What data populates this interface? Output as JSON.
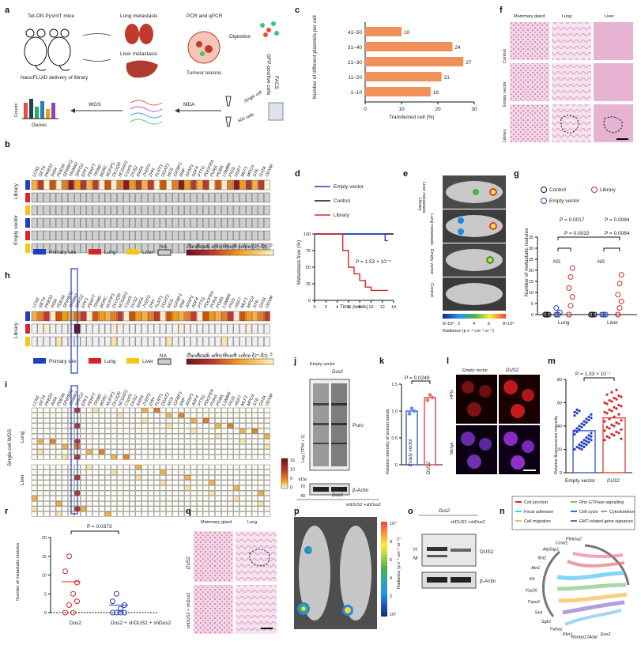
{
  "figure": {
    "panels": {
      "a": "a",
      "b": "b",
      "c": "c",
      "d": "d",
      "e": "e",
      "f": "f",
      "g": "g",
      "h": "h",
      "i": "i",
      "j": "j",
      "k": "k",
      "l": "l",
      "m": "m",
      "n": "n",
      "o": "o",
      "p": "p",
      "q": "q",
      "r": "r"
    }
  },
  "panel_a": {
    "mice": "Tet-ON PyVmT mice",
    "delivery": "NanoFLUID delivery of library",
    "lung_met": "Lung metastasis",
    "liver_met": "Liver metastasis",
    "pcr": "PCR and qPCR",
    "tumour": "Tumour lesions",
    "digestion": "Digestion",
    "facs": "FACS",
    "gfp": "GFP-positive cells",
    "single": "Single cell",
    "cells500": "500 cells",
    "mda": "MDA",
    "wgs": "WGS",
    "counts": "Counts",
    "genes": "Genes"
  },
  "panel_b": {
    "genes": [
      "LCN1",
      "GET4",
      "PKB33",
      "INS4",
      "PDE44",
      "SPIRBT2",
      "TRIM42",
      "SPFG2",
      "EPF1",
      "PEKFT",
      "TRIM2",
      "BORC",
      "NUFIP1",
      "DLOQR",
      "NCDAF2",
      "C1orf1",
      "DUS2",
      "RAFA",
      "JYEP3",
      "ZHH",
      "FLRT1",
      "DGAT2",
      "NGS",
      "IGFBP1",
      "RNF",
      "AFAP1",
      "ADF4",
      "PTTG",
      "PDGFRA",
      "PURA",
      "PGBS",
      "LSMBR",
      "PIGS",
      "HSP7",
      "MLF1",
      "MPO3",
      "ST6",
      "GATA",
      "ODVM"
    ],
    "row_library": "Library",
    "row_empty": "Empty vector",
    "legend_primary": "Primary site",
    "legend_lung": "Lung",
    "legend_liver": "Liver",
    "legend_na": "NA",
    "legend_score": "Candidate enrichment score (2^-Ct)",
    "scale_ticks": [
      "9",
      "8",
      "7",
      "6",
      "5",
      "4",
      "3",
      "2",
      "1",
      "0"
    ]
  },
  "panel_c": {
    "xlabel": "Transfected cell (%)",
    "ylabel": "Number of different plasmids per cell",
    "xticks": [
      "0",
      "10",
      "20",
      "30"
    ],
    "categories": [
      "41–50",
      "31–40",
      "21–30",
      "11–20",
      "1–10"
    ],
    "values": [
      10,
      24,
      27,
      21,
      18
    ],
    "labels": [
      "10",
      "24",
      "27",
      "21",
      "18"
    ]
  },
  "chart_data": {
    "type": "bar",
    "orientation": "horizontal",
    "categories": [
      "41–50",
      "31–40",
      "21–30",
      "11–20",
      "1–10"
    ],
    "values": [
      10,
      24,
      27,
      21,
      18
    ],
    "xlabel": "Transfected cell (%)",
    "ylabel": "Number of different plasmids per cell",
    "xlim": [
      0,
      30
    ]
  },
  "panel_d": {
    "legend": [
      "Empty vector",
      "Control",
      "Library"
    ],
    "ylabel": "Metastasis-free (%)",
    "xlabel": "Time (week)",
    "xticks": [
      "0",
      "2",
      "4",
      "6",
      "8",
      "10",
      "12",
      "14"
    ],
    "yticks": [
      "0",
      "25",
      "50",
      "75",
      "100"
    ],
    "pvalue": "P = 1.53 × 10⁻⁵",
    "library_curve": {
      "x": [
        0,
        4,
        5,
        6,
        7,
        8,
        9,
        10,
        12,
        13
      ],
      "y": [
        100,
        100,
        75,
        50,
        40,
        30,
        20,
        15,
        15,
        15
      ]
    },
    "empty_curve": {
      "x": [
        0,
        12,
        12.5,
        13
      ],
      "y": [
        100,
        100,
        90,
        90
      ]
    }
  },
  "panel_e": {
    "rows": [
      "Liver metastasis",
      "Lung metastasis",
      "Empty vector",
      "Control"
    ],
    "group": "Library",
    "scale_label": "Radiance (p s⁻¹ cm⁻² sr⁻¹)",
    "scale_ticks": [
      "8×10³",
      "2",
      "4",
      "6",
      "8×10⁴"
    ]
  },
  "panel_f": {
    "cols": [
      "Mammary gland",
      "Lung",
      "Liver"
    ],
    "rows": [
      "Control",
      "Empty vector",
      "Library"
    ]
  },
  "panel_g": {
    "legend": [
      "Control",
      "Library",
      "Empty vector"
    ],
    "ylabel": "Number of metastatic nodules",
    "groups": [
      "Lung",
      "Liver"
    ],
    "yticks": [
      "0",
      "5",
      "10",
      "15",
      "20",
      "25",
      "30",
      "35"
    ],
    "p_lung_top": "P = 0.0017",
    "p_lung": "P = 0.0032",
    "p_liver_top": "P = 0.0084",
    "p_liver": "P = 0.0084",
    "ns": "NS"
  },
  "panel_h": {
    "row_library": "Library",
    "legend_primary": "Primary site",
    "legend_lung": "Lung",
    "legend_liver": "Liver",
    "legend_na": "NA",
    "legend_score": "Candidate enrichment score (2^-Ct)"
  },
  "panel_i": {
    "ylabel": "Single-cell WGS",
    "group_lung": "Lung",
    "group_liver": "Liver",
    "scale_label": "Log (TPM + 1)",
    "scale_ticks": [
      "15",
      "10",
      "5",
      "0"
    ]
  },
  "panel_j": {
    "cols": [
      "Empty vector",
      "Dus2"
    ],
    "band_puro": "Puro",
    "band_actin": "β-Actin",
    "kda": "kDa",
    "mw_top": "70",
    "mw_bottom": "40"
  },
  "panel_k": {
    "pvalue": "P = 0.0249",
    "ylabel": "Relative intensity of protein bands",
    "groups": [
      "Empty vector",
      "DUS2"
    ],
    "yticks": [
      "0",
      "0.5",
      "1.0",
      "1.5"
    ]
  },
  "panel_l": {
    "cols": [
      "Empty vector",
      "DUS2"
    ],
    "rows": [
      "HPG",
      "Merge"
    ]
  },
  "panel_m": {
    "pvalue": "P = 1.33 × 10⁻⁷",
    "ylabel": "Relative fluorescence intensity",
    "groups": [
      "Empty vector",
      "DUS2"
    ],
    "yticks": [
      "0",
      "20",
      "40",
      "60",
      "80"
    ]
  },
  "panel_n": {
    "legend": [
      "Cell junction",
      "Rho GTPase signalling",
      "Focal adhesion",
      "Cell cycle",
      "Cytoskeleton",
      "Cell migration",
      "EMT-related gene signature"
    ],
    "genes": [
      "Dus2",
      "Adal",
      "Ranbp17",
      "Pkn1",
      "Ywhaz",
      "Sgk1",
      "Sx4",
      "Tnpo3",
      "Vsp26",
      "Kit",
      "Atn1",
      "Ifrd1",
      "Atp6ap1",
      "Ccnd1",
      "Plekha2"
    ]
  },
  "panel_o": {
    "title": "Dus2",
    "cols": [
      "",
      "shDUS2 +shDus2"
    ],
    "band": "DUS2",
    "actin": "β-Actin",
    "h": "H",
    "m": "M"
  },
  "panel_p": {
    "title": "Dus2",
    "col2": "shDUS2 +shDus2",
    "scale_label": "Radiance (p s⁻¹ cm⁻² sr⁻¹)",
    "scale_ticks": [
      "10⁴",
      "8",
      "6",
      "4",
      "2",
      "10³"
    ]
  },
  "panel_q": {
    "cols": [
      "Mammary gland",
      "Lung"
    ],
    "rows": [
      "DUS2",
      "shDUS2 + shDus2"
    ]
  },
  "panel_r": {
    "pvalue": "P = 0.0373",
    "ylabel": "Number of metastatic nodules",
    "groups": [
      "Dus2",
      "Dus2 + shDUS2 + shDus2"
    ],
    "yticks": [
      "0",
      "5",
      "10",
      "15",
      "20"
    ]
  }
}
